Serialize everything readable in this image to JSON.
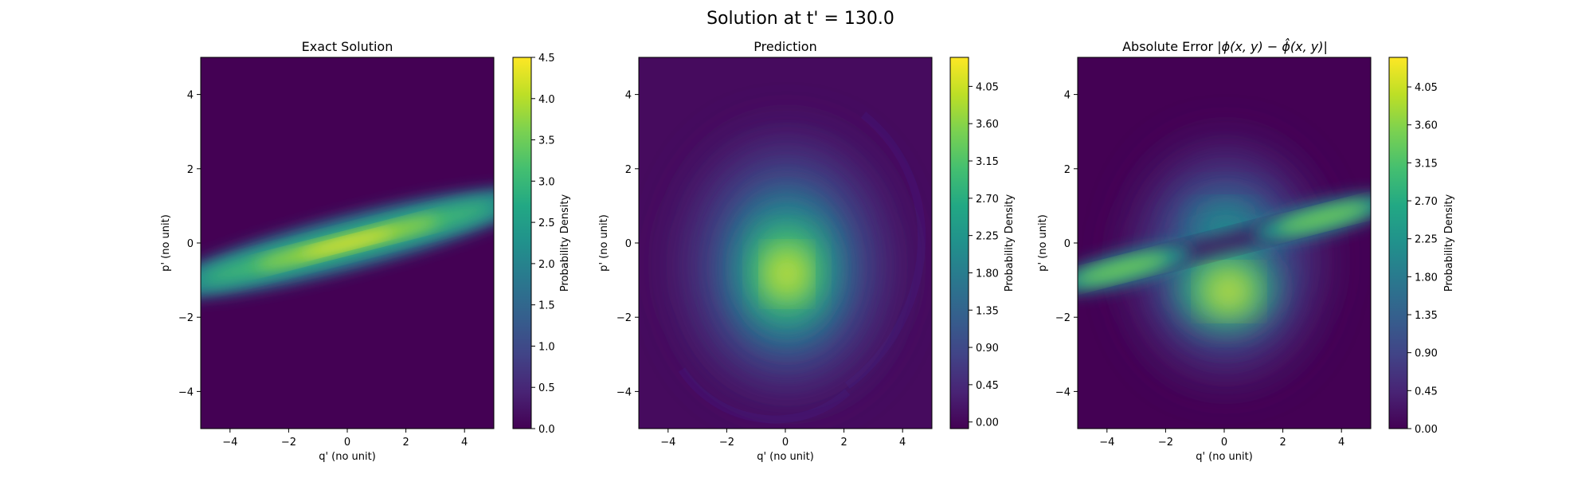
{
  "figure": {
    "suptitle": "Solution at t' = 130.0"
  },
  "chart_data": [
    {
      "type": "heatmap",
      "title": "Exact Solution",
      "xlabel": "q' (no unit)",
      "ylabel": "p' (no unit)",
      "xlim": [
        -5,
        5
      ],
      "ylim": [
        -5,
        5
      ],
      "xticks": [
        -4,
        -2,
        0,
        2,
        4
      ],
      "yticks": [
        -4,
        -2,
        0,
        2,
        4
      ],
      "colormap": "viridis",
      "colorbar": {
        "label": "Probability Density",
        "range": [
          0.0,
          4.5
        ],
        "ticks": [
          "0.0",
          "0.5",
          "1.0",
          "1.5",
          "2.0",
          "2.5",
          "3.0",
          "3.5",
          "4.0",
          "4.5"
        ]
      },
      "features": [
        {
          "kind": "elongated-gaussian-band",
          "center": [
            0,
            0
          ],
          "slope": 0.2,
          "peak": 4.3
        }
      ]
    },
    {
      "type": "heatmap",
      "title": "Prediction",
      "xlabel": "q' (no unit)",
      "ylabel": "p' (no unit)",
      "xlim": [
        -5,
        5
      ],
      "ylim": [
        -5,
        5
      ],
      "xticks": [
        -4,
        -2,
        0,
        2,
        4
      ],
      "yticks": [
        -4,
        -2,
        0,
        2,
        4
      ],
      "colormap": "viridis",
      "colorbar": {
        "label": "Probability Density",
        "range": [
          -0.08,
          4.4
        ],
        "ticks": [
          "0.00",
          "0.45",
          "0.90",
          "1.35",
          "1.80",
          "2.25",
          "2.70",
          "3.15",
          "3.60",
          "4.05"
        ]
      },
      "features": [
        {
          "kind": "gaussian-blob",
          "center": [
            0.1,
            -0.6
          ],
          "peak": 4.2
        }
      ]
    },
    {
      "type": "heatmap",
      "title_prefix": "Absolute Error |",
      "title_math": "ϕ(x, y) − ",
      "title_hat": "ϕ̂",
      "title_suffix": "(x, y)|",
      "xlabel": "q' (no unit)",
      "ylabel": "p' (no unit)",
      "xlim": [
        -5,
        5
      ],
      "ylim": [
        -5,
        5
      ],
      "xticks": [
        -4,
        -2,
        0,
        2,
        4
      ],
      "yticks": [
        -4,
        -2,
        0,
        2,
        4
      ],
      "colormap": "viridis",
      "colorbar": {
        "label": "Probability Density",
        "range": [
          0.0,
          4.4
        ],
        "ticks": [
          "0.00",
          "0.45",
          "0.90",
          "1.35",
          "1.80",
          "2.25",
          "2.70",
          "3.15",
          "3.60",
          "4.05"
        ]
      },
      "features": [
        {
          "kind": "abs-difference",
          "of": [
            "elongated-gaussian-band",
            "gaussian-blob"
          ],
          "peak": 4.2
        }
      ]
    }
  ]
}
